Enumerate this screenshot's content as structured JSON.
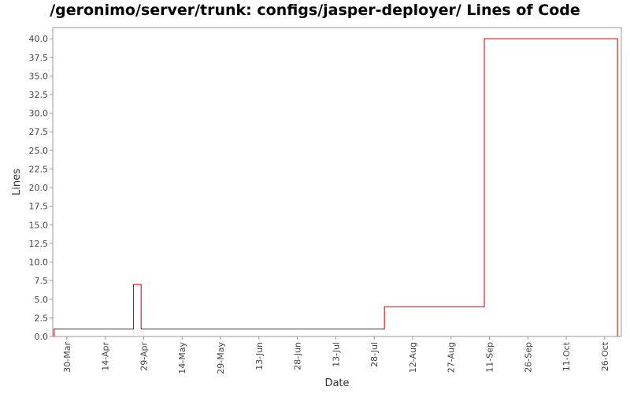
{
  "chart_data": {
    "type": "line",
    "title": "/geronimo/server/trunk: configs/jasper-deployer/ Lines of Code",
    "xlabel": "Date",
    "ylabel": "Lines",
    "ylim": [
      0,
      41.5
    ],
    "y_ticks": [
      "0.0",
      "2.5",
      "5.0",
      "7.5",
      "10.0",
      "12.5",
      "15.0",
      "17.5",
      "20.0",
      "22.5",
      "25.0",
      "27.5",
      "30.0",
      "32.5",
      "35.0",
      "37.5",
      "40.0"
    ],
    "x_tick_labels": [
      "30-Mar",
      "14-Apr",
      "29-Apr",
      "14-May",
      "29-May",
      "13-Jun",
      "28-Jun",
      "13-Jul",
      "28-Jul",
      "12-Aug",
      "27-Aug",
      "11-Sep",
      "26-Sep",
      "11-Oct",
      "26-Oct"
    ],
    "x_range_days": [
      -5.5,
      216.5
    ],
    "grid": false,
    "series": [
      {
        "color": "#cc0000",
        "step": true,
        "points": [
          {
            "day": -5,
            "date": "25-Mar",
            "y": 0
          },
          {
            "day": -5,
            "date": "25-Mar",
            "y": 1
          },
          {
            "day": 26,
            "date": "25-Apr",
            "y": 7
          },
          {
            "day": 29,
            "date": "28-Apr",
            "y": 1
          },
          {
            "day": 124,
            "date": "1-Aug",
            "y": 4
          },
          {
            "day": 163,
            "date": "9-Sep",
            "y": 40
          },
          {
            "day": 215,
            "date": "31-Oct",
            "y": 0
          }
        ]
      }
    ]
  }
}
